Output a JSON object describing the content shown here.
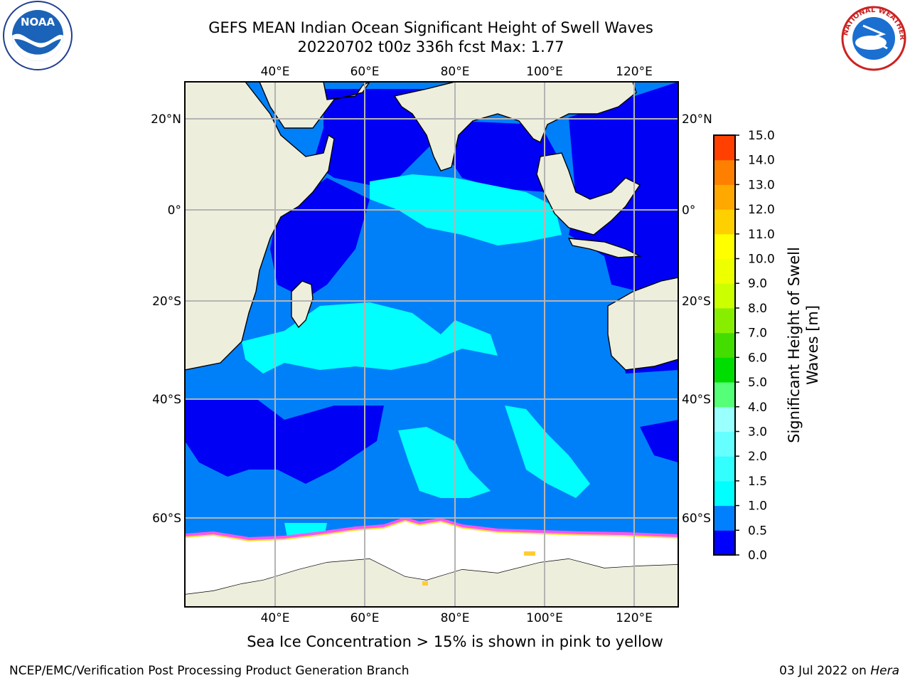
{
  "header": {
    "title_line1": "GEFS MEAN Indian Ocean Significant Height of Swell Waves",
    "title_line2": "20220702 t00z 336h fcst   Max: 1.77"
  },
  "map": {
    "lon_labels": [
      "40°E",
      "60°E",
      "80°E",
      "100°E",
      "120°E"
    ],
    "lat_labels": [
      "20°N",
      "0°",
      "20°S",
      "40°S",
      "60°S"
    ],
    "colors": {
      "ocean_dark": "#0000f5",
      "ocean_mid": "#0080f8",
      "ocean_light": "#00ffff",
      "land": "#eeeedd",
      "ice": "#ffffff",
      "ice_edge_pink": "#ff55ee",
      "ice_edge_yellow": "#ffdd44",
      "grid": "#b4b4b4"
    }
  },
  "colorbar": {
    "label_line1": "Significant Height of Swell",
    "label_line2": "Waves [m]",
    "ticks": [
      "0.0",
      "0.5",
      "1.0",
      "1.5",
      "2.0",
      "3.0",
      "4.0",
      "5.0",
      "6.0",
      "7.0",
      "8.0",
      "9.0",
      "10.0",
      "11.0",
      "12.0",
      "13.0",
      "14.0",
      "15.0"
    ],
    "colors": [
      "#0000ff",
      "#0080ff",
      "#00ffff",
      "#33ffff",
      "#66ffff",
      "#99ffff",
      "#55ff77",
      "#00dd00",
      "#44dd00",
      "#88ee00",
      "#ccff00",
      "#eeff00",
      "#ffff00",
      "#ffd000",
      "#ffa800",
      "#ff8000",
      "#ff4000",
      "#ff0000"
    ]
  },
  "caption": "Sea Ice Concentration > 15% is shown in pink to yellow",
  "footer": {
    "left": "NCEP/EMC/Verification Post Processing Product Generation Branch",
    "right_prefix": "03 Jul 2022 on ",
    "right_host": "Hera"
  },
  "logos": {
    "noaa_text": "NOAA",
    "nws_text": "NATIONAL WEATHER SERVICE"
  }
}
